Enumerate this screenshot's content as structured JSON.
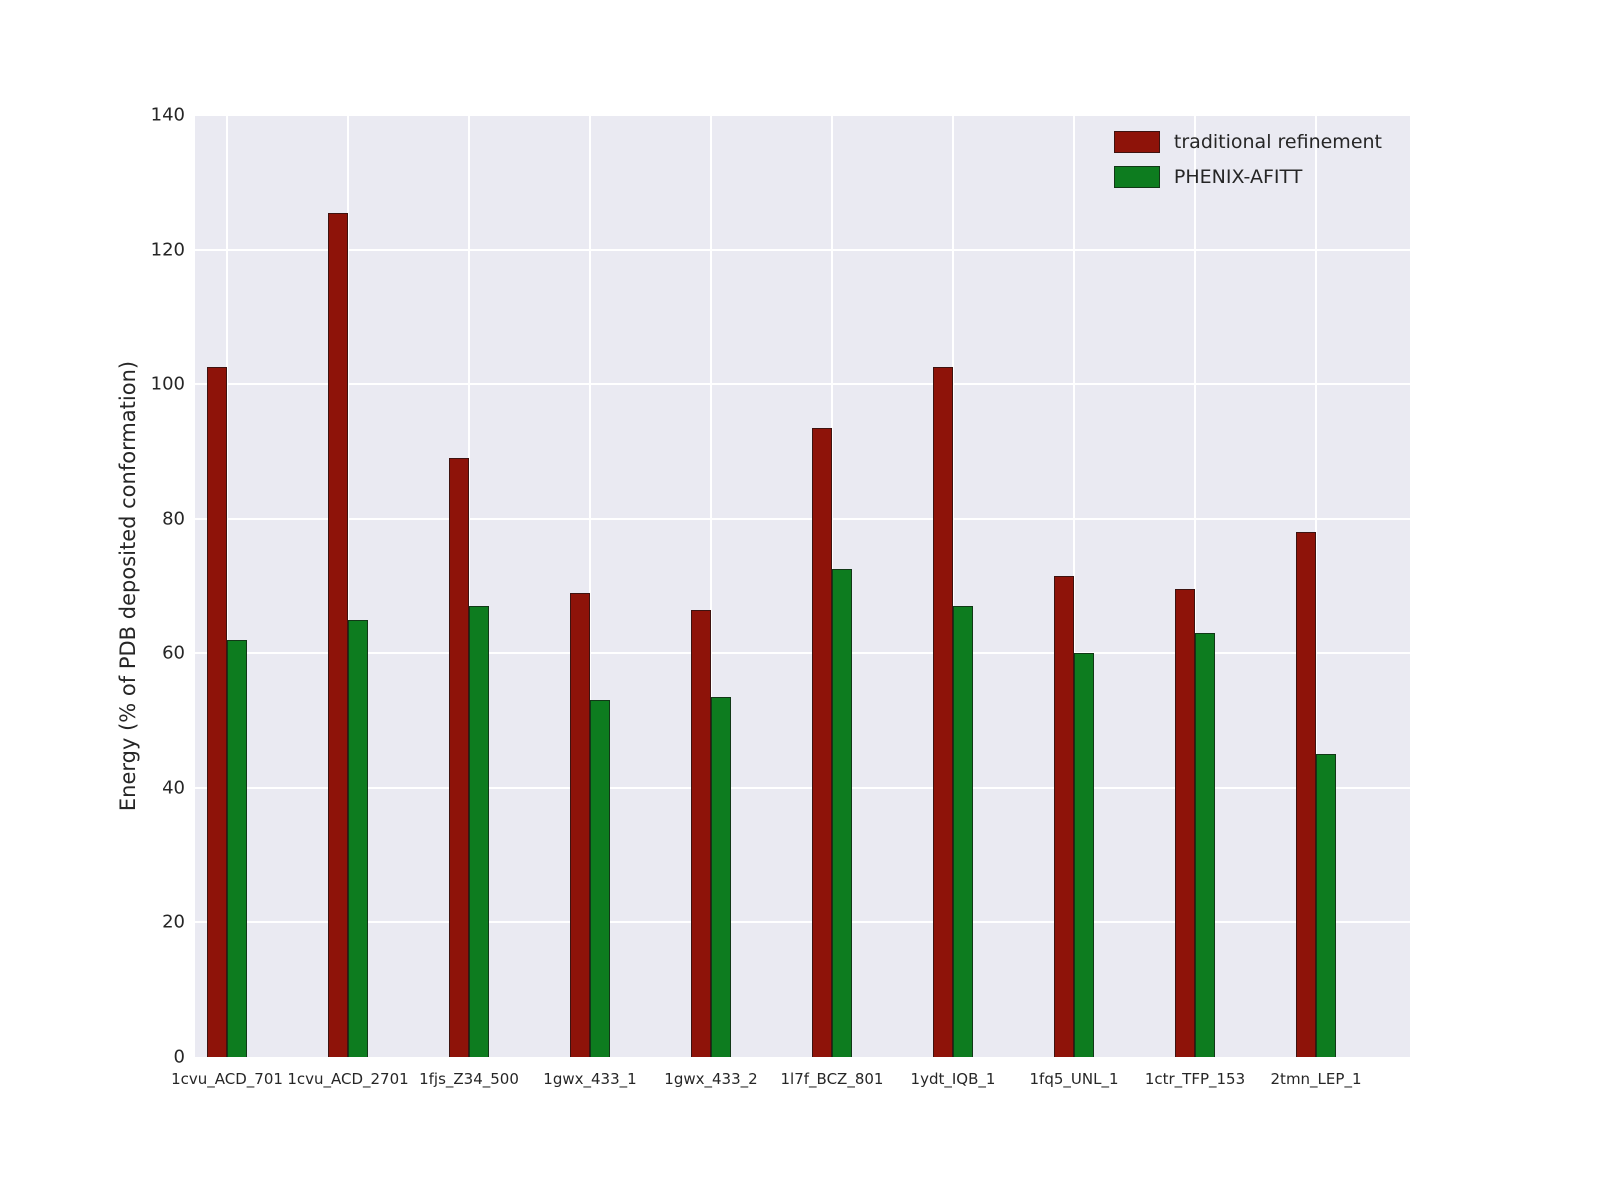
{
  "chart_data": {
    "type": "bar",
    "categories": [
      "1cvu_ACD_701",
      "1cvu_ACD_2701",
      "1fjs_Z34_500",
      "1gwx_433_1",
      "1gwx_433_2",
      "1l7f_BCZ_801",
      "1ydt_IQB_1",
      "1fq5_UNL_1",
      "1ctr_TFP_153",
      "2tmn_LEP_1"
    ],
    "series": [
      {
        "name": "traditional refinement",
        "color": "#8e1309",
        "values": [
          102.5,
          125.5,
          89,
          69,
          66.5,
          93.5,
          102.5,
          71.5,
          69.5,
          78
        ]
      },
      {
        "name": "PHENIX-AFITT",
        "color": "#0d7c1f",
        "values": [
          62,
          65,
          67,
          53,
          53.5,
          72.5,
          67,
          60,
          63,
          45
        ]
      }
    ],
    "title": "",
    "xlabel": "",
    "ylabel": "Energy (% of PDB deposited conformation)",
    "ylim": [
      0,
      140
    ],
    "yticks": [
      0,
      20,
      40,
      60,
      80,
      100,
      120,
      140
    ],
    "grid": true,
    "legend_position": "upper right",
    "plot_background": "#eaeaf2",
    "grid_color": "#ffffff"
  }
}
